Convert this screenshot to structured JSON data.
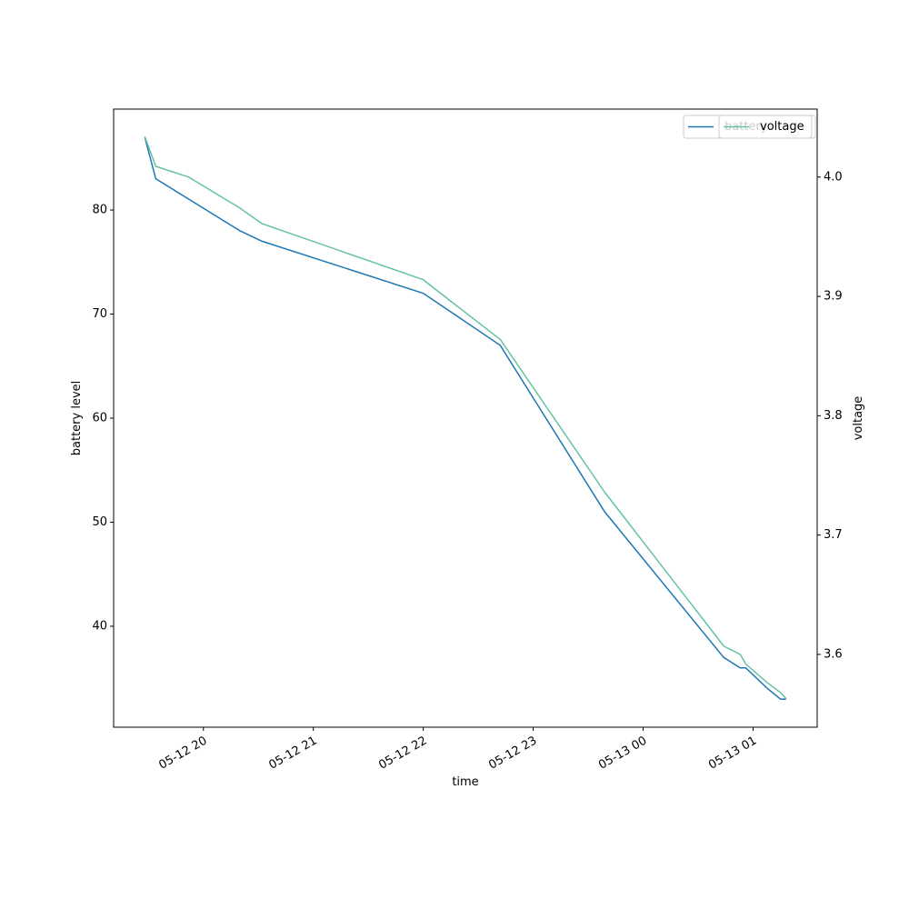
{
  "chart_data": {
    "type": "line",
    "x_label": "time",
    "y_label": "battery level",
    "y2_label": "voltage",
    "xlim": [
      "05-12 19:11",
      "05-13 01:35"
    ],
    "xticks": [
      {
        "value": "05-12 20:00",
        "label": "05-12 20"
      },
      {
        "value": "05-12 21:00",
        "label": "05-12 21"
      },
      {
        "value": "05-12 22:00",
        "label": "05-12 22"
      },
      {
        "value": "05-12 23:00",
        "label": "05-12 23"
      },
      {
        "value": "05-13 00:00",
        "label": "05-13 00"
      },
      {
        "value": "05-13 01:00",
        "label": "05-13 01"
      }
    ],
    "ylim": [
      30.3,
      89.7
    ],
    "yticks": [
      40,
      50,
      60,
      70,
      80
    ],
    "y2lim": [
      3.539,
      4.057
    ],
    "y2ticks": [
      3.6,
      3.7,
      3.8,
      3.9,
      {
        "value": 4.0,
        "label": "4.0"
      }
    ],
    "legend": "upper right",
    "series": [
      {
        "name": "battery",
        "color": "#1f77b4",
        "x": [
          "05-12 19:28",
          "05-12 19:34",
          "05-12 20:20",
          "05-12 20:32",
          "05-12 22:00",
          "05-12 22:42",
          "05-12 23:39",
          "05-13 00:44",
          "05-13 00:53",
          "05-13 00:56",
          "05-13 01:08",
          "05-13 01:15",
          "05-13 01:18"
        ],
        "values": [
          87,
          83,
          78,
          77,
          72,
          67,
          51,
          37,
          36,
          36,
          34,
          33,
          33
        ]
      },
      {
        "name": "voltage",
        "color": "#66c2a5",
        "axis": "y2",
        "x": [
          "05-12 19:28",
          "05-12 19:34",
          "05-12 19:52",
          "05-12 20:20",
          "05-12 20:32",
          "05-12 22:00",
          "05-12 22:15",
          "05-12 22:42",
          "05-12 23:39",
          "05-13 00:44",
          "05-13 00:53",
          "05-13 00:56",
          "05-13 01:08",
          "05-13 01:15",
          "05-13 01:18"
        ],
        "values": [
          4.034,
          4.009,
          4.0,
          3.974,
          3.961,
          3.914,
          3.896,
          3.864,
          3.736,
          3.607,
          3.6,
          3.592,
          3.576,
          3.568,
          3.563
        ]
      }
    ]
  }
}
